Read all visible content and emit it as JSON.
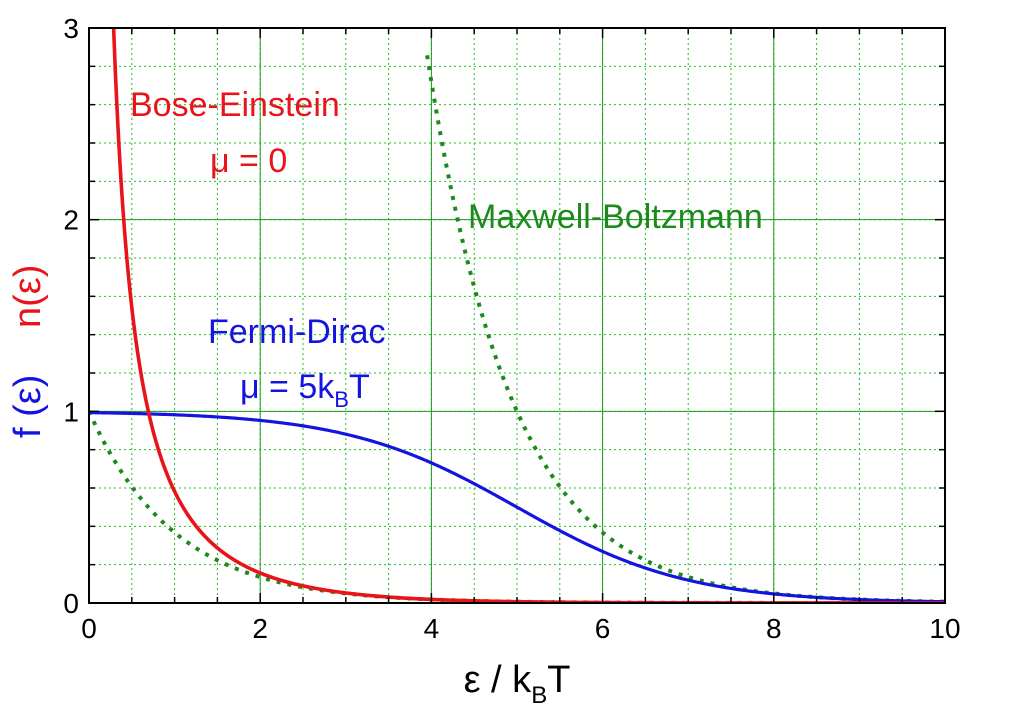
{
  "chart_data": {
    "type": "line",
    "xlabel": "ε / k_BT",
    "xlabel_main": "ε / k",
    "xlabel_sub": "B",
    "xlabel_tail": "T",
    "ylabel_blue": "f (ε)",
    "ylabel_red": "n(ε)",
    "xlim": [
      0,
      10
    ],
    "ylim": [
      0,
      3
    ],
    "x_ticks": [
      "0",
      "2",
      "4",
      "6",
      "8",
      "10"
    ],
    "y_ticks": [
      "0",
      "1",
      "2",
      "3"
    ],
    "grid": true,
    "colors": {
      "bose": "#e8141a",
      "fermi": "#1414e0",
      "maxwell": "#1c8a1c",
      "grid": "#22c022"
    },
    "series": [
      {
        "name": "Bose-Einstein",
        "formula": "1/(exp(x)-1)",
        "x": [
          0.27,
          0.3,
          0.35,
          0.4,
          0.5,
          0.6,
          0.7,
          0.8,
          1.0,
          1.2,
          1.5,
          2.0,
          2.5,
          3.0,
          4.0,
          5.0,
          6.0,
          8.0,
          10.0
        ],
        "y": [
          3.0,
          2.86,
          2.38,
          2.03,
          1.54,
          1.22,
          0.99,
          0.82,
          0.58,
          0.43,
          0.29,
          0.16,
          0.09,
          0.05,
          0.019,
          0.007,
          0.0025,
          0.0003,
          5e-05
        ]
      },
      {
        "name": "Fermi-Dirac",
        "formula": "1/(exp(x-5)+1)",
        "x": [
          0,
          1,
          2,
          3,
          4,
          5,
          6,
          7,
          8,
          9,
          10
        ],
        "y": [
          0.993,
          0.982,
          0.953,
          0.881,
          0.731,
          0.5,
          0.269,
          0.119,
          0.047,
          0.018,
          0.007
        ]
      },
      {
        "name": "Maxwell-Boltzmann",
        "formula": "exp(-x) and exp(5-x)",
        "x": [
          0,
          1,
          2,
          3,
          4,
          5,
          6,
          7,
          8,
          9,
          10
        ],
        "y_low": [
          1.0,
          0.368,
          0.135,
          0.05,
          0.018,
          0.007,
          0.0025,
          0.0009,
          0.0003,
          0.0001,
          5e-05
        ],
        "y_high": [
          null,
          null,
          null,
          null,
          2.72,
          1.0,
          0.368,
          0.135,
          0.05,
          0.018,
          0.007
        ]
      }
    ],
    "annotations": {
      "bose_title": "Bose-Einstein",
      "bose_mu": "μ = 0",
      "maxwell_title": "Maxwell-Boltzmann",
      "fermi_title": "Fermi-Dirac",
      "fermi_mu_main": "μ = 5k",
      "fermi_mu_sub": "B",
      "fermi_mu_tail": "T"
    }
  }
}
